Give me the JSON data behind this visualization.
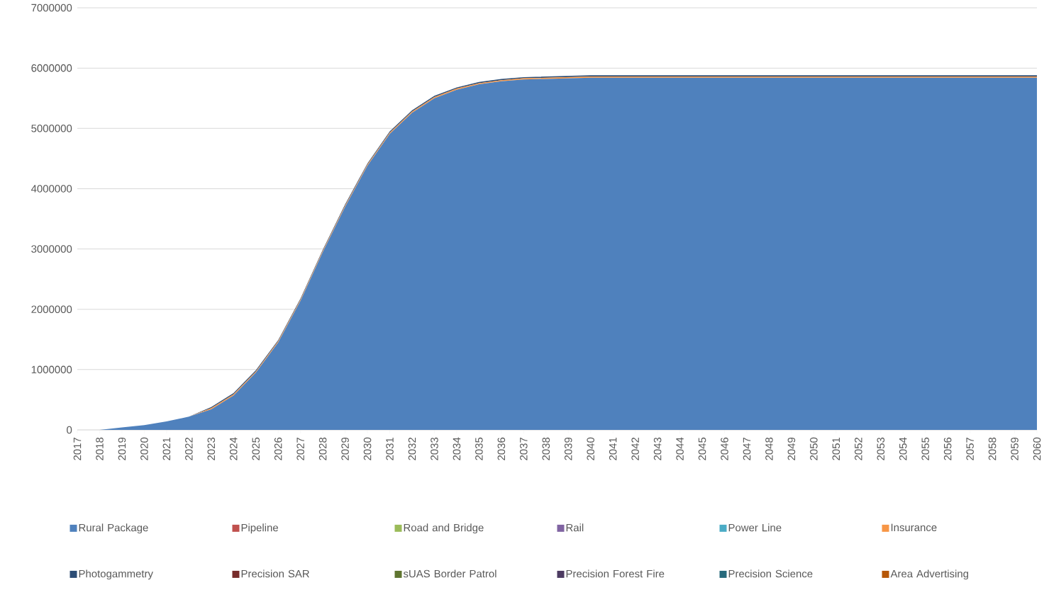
{
  "chart_data": {
    "type": "area",
    "stacked": true,
    "grid": "y",
    "legend": "bottom",
    "categories": [
      "2017",
      "2018",
      "2019",
      "2020",
      "2021",
      "2022",
      "2023",
      "2024",
      "2025",
      "2026",
      "2027",
      "2028",
      "2029",
      "2030",
      "2031",
      "2032",
      "2033",
      "2034",
      "2035",
      "2036",
      "2037",
      "2038",
      "2039",
      "2040",
      "2041",
      "2042",
      "2043",
      "2044",
      "2045",
      "2046",
      "2047",
      "2048",
      "2049",
      "2050",
      "2051",
      "2052",
      "2053",
      "2054",
      "2055",
      "2056",
      "2057",
      "2058",
      "2059",
      "2060"
    ],
    "ylim": [
      0,
      7000000
    ],
    "yticks": [
      0,
      1000000,
      2000000,
      3000000,
      4000000,
      5000000,
      6000000,
      7000000
    ],
    "series": [
      {
        "name": "Rural Package",
        "color": "#4f81bd",
        "values": [
          0,
          0,
          40000,
          80000,
          140000,
          220000,
          340000,
          570000,
          950000,
          1450000,
          2140000,
          2950000,
          3700000,
          4380000,
          4910000,
          5260000,
          5500000,
          5640000,
          5730000,
          5780000,
          5810000,
          5820000,
          5830000,
          5840000,
          5840000,
          5840000,
          5840000,
          5840000,
          5840000,
          5840000,
          5840000,
          5840000,
          5840000,
          5840000,
          5840000,
          5840000,
          5840000,
          5840000,
          5840000,
          5840000,
          5840000,
          5840000,
          5840000,
          5840000
        ]
      },
      {
        "name": "Pipeline",
        "color": "#c0504d",
        "values": [
          null,
          null,
          null,
          null,
          null,
          null,
          null,
          null,
          null,
          null,
          null,
          null,
          null,
          null,
          null,
          null,
          null,
          null,
          null,
          null,
          null,
          null,
          null,
          null,
          null,
          null,
          null,
          null,
          null,
          null,
          null,
          null,
          null,
          null,
          null,
          null,
          null,
          null,
          null,
          null,
          null,
          null,
          null,
          null
        ]
      },
      {
        "name": "Road and Bridge",
        "color": "#9bbb59",
        "values": [
          null,
          null,
          null,
          null,
          null,
          null,
          null,
          null,
          null,
          null,
          null,
          null,
          null,
          null,
          null,
          null,
          null,
          null,
          null,
          null,
          null,
          null,
          null,
          null,
          null,
          null,
          null,
          null,
          null,
          null,
          null,
          null,
          null,
          null,
          null,
          null,
          null,
          null,
          null,
          null,
          null,
          null,
          null,
          null
        ]
      },
      {
        "name": "Rail",
        "color": "#8064a2",
        "values": [
          null,
          null,
          null,
          null,
          null,
          null,
          null,
          null,
          null,
          null,
          null,
          null,
          null,
          null,
          null,
          null,
          null,
          null,
          null,
          null,
          null,
          null,
          null,
          null,
          null,
          null,
          null,
          null,
          null,
          null,
          null,
          null,
          null,
          null,
          null,
          null,
          null,
          null,
          null,
          null,
          null,
          null,
          null,
          null
        ]
      },
      {
        "name": "Power Line",
        "color": "#4bacc6",
        "values": [
          null,
          null,
          null,
          null,
          null,
          null,
          null,
          null,
          null,
          null,
          null,
          null,
          null,
          null,
          null,
          null,
          null,
          null,
          null,
          null,
          null,
          null,
          null,
          null,
          null,
          null,
          null,
          null,
          null,
          null,
          null,
          null,
          null,
          null,
          null,
          null,
          null,
          null,
          null,
          null,
          null,
          null,
          null,
          null
        ]
      },
      {
        "name": "Insurance",
        "color": "#f79646",
        "values": [
          0,
          0,
          0,
          0,
          0,
          0,
          20000,
          20000,
          20000,
          20000,
          20000,
          20000,
          20000,
          20000,
          20000,
          20000,
          20000,
          20000,
          20000,
          20000,
          20000,
          20000,
          20000,
          20000,
          20000,
          20000,
          20000,
          20000,
          20000,
          20000,
          20000,
          20000,
          20000,
          20000,
          20000,
          20000,
          20000,
          20000,
          20000,
          20000,
          20000,
          20000,
          20000,
          20000
        ]
      },
      {
        "name": "Photogammetry",
        "color": "#2c4d75",
        "values": [
          0,
          0,
          0,
          0,
          0,
          0,
          20000,
          20000,
          20000,
          20000,
          20000,
          20000,
          20000,
          20000,
          20000,
          20000,
          20000,
          20000,
          20000,
          20000,
          20000,
          20000,
          20000,
          20000,
          20000,
          20000,
          20000,
          20000,
          20000,
          20000,
          20000,
          20000,
          20000,
          20000,
          20000,
          20000,
          20000,
          20000,
          20000,
          20000,
          20000,
          20000,
          20000,
          20000
        ]
      },
      {
        "name": "Precision SAR",
        "color": "#772c2a",
        "values": [
          null,
          null,
          null,
          null,
          null,
          null,
          null,
          null,
          null,
          null,
          null,
          null,
          null,
          null,
          null,
          null,
          null,
          null,
          null,
          null,
          null,
          null,
          null,
          null,
          null,
          null,
          null,
          null,
          null,
          null,
          null,
          null,
          null,
          null,
          null,
          null,
          null,
          null,
          null,
          null,
          null,
          null,
          null,
          null
        ]
      },
      {
        "name": "sUAS Border Patrol",
        "color": "#5f7530",
        "values": [
          null,
          null,
          null,
          null,
          null,
          null,
          null,
          null,
          null,
          null,
          null,
          null,
          null,
          null,
          null,
          null,
          null,
          null,
          null,
          null,
          null,
          null,
          null,
          null,
          null,
          null,
          null,
          null,
          null,
          null,
          null,
          null,
          null,
          null,
          null,
          null,
          null,
          null,
          null,
          null,
          null,
          null,
          null,
          null
        ]
      },
      {
        "name": "Precision Forest Fire",
        "color": "#4d3b62",
        "values": [
          null,
          null,
          null,
          null,
          null,
          null,
          null,
          null,
          null,
          null,
          null,
          null,
          null,
          null,
          null,
          null,
          null,
          null,
          null,
          null,
          null,
          null,
          null,
          null,
          null,
          null,
          null,
          null,
          null,
          null,
          null,
          null,
          null,
          null,
          null,
          null,
          null,
          null,
          null,
          null,
          null,
          null,
          null,
          null
        ]
      },
      {
        "name": "Precision Science",
        "color": "#276a7c",
        "values": [
          null,
          null,
          null,
          null,
          null,
          null,
          null,
          null,
          null,
          null,
          null,
          null,
          null,
          null,
          null,
          null,
          null,
          null,
          null,
          null,
          null,
          null,
          null,
          null,
          null,
          null,
          null,
          null,
          null,
          null,
          null,
          null,
          null,
          null,
          null,
          null,
          null,
          null,
          null,
          null,
          null,
          null,
          null,
          null
        ]
      },
      {
        "name": "Area Advertising",
        "color": "#b65708",
        "values": [
          null,
          null,
          null,
          null,
          null,
          null,
          null,
          null,
          null,
          null,
          null,
          null,
          null,
          null,
          null,
          null,
          null,
          null,
          null,
          null,
          null,
          null,
          null,
          null,
          null,
          null,
          null,
          null,
          null,
          null,
          null,
          null,
          null,
          null,
          null,
          null,
          null,
          null,
          null,
          null,
          null,
          null,
          null,
          null
        ]
      }
    ]
  }
}
